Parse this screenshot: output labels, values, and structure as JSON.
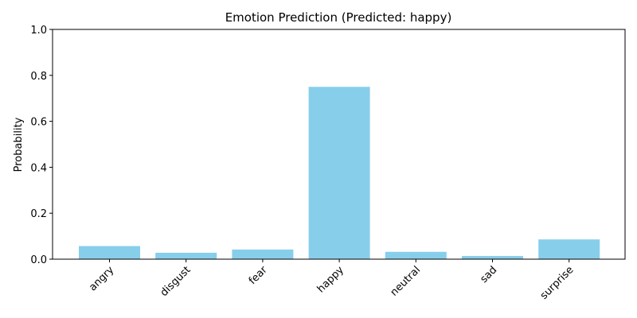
{
  "chart_data": {
    "type": "bar",
    "title": "Emotion Prediction (Predicted: happy)",
    "xlabel": "",
    "ylabel": "Probability",
    "categories": [
      "angry",
      "disgust",
      "fear",
      "happy",
      "neutral",
      "sad",
      "surprise"
    ],
    "values": [
      0.057,
      0.028,
      0.042,
      0.75,
      0.032,
      0.014,
      0.086
    ],
    "ylim": [
      0,
      1.0
    ],
    "yticks": [
      "0.0",
      "0.2",
      "0.4",
      "0.6",
      "0.8",
      "1.0"
    ],
    "bar_color": "#87ceeb",
    "grid": false,
    "legend": "none"
  }
}
